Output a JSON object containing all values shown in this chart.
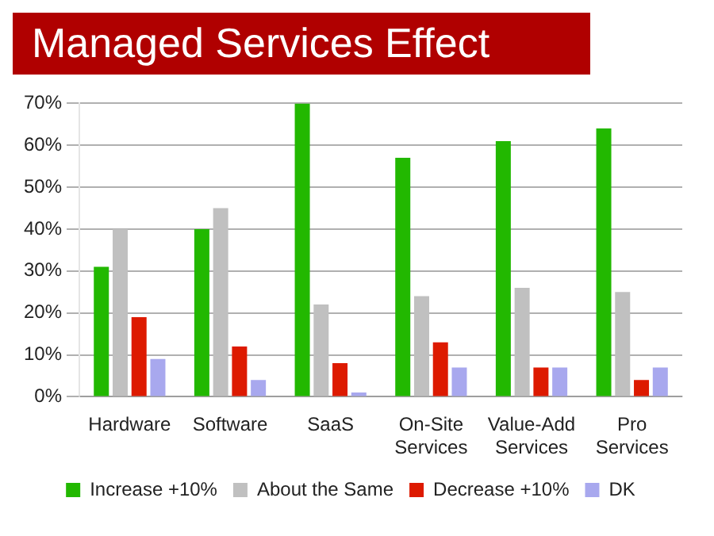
{
  "chart_data": {
    "type": "bar",
    "title": "Managed Services Effect",
    "categories": [
      "Hardware",
      "Software",
      "SaaS",
      "On-Site Services",
      "Value-Add Services",
      "Pro Services"
    ],
    "series": [
      {
        "name": "Increase +10%",
        "color": "#22b800",
        "values": [
          31,
          40,
          70,
          57,
          61,
          64
        ]
      },
      {
        "name": "About the Same",
        "color": "#c0c0c0",
        "values": [
          40,
          45,
          22,
          24,
          26,
          25
        ]
      },
      {
        "name": "Decrease +10%",
        "color": "#dd1a00",
        "values": [
          19,
          12,
          8,
          13,
          7,
          4
        ]
      },
      {
        "name": "DK",
        "color": "#a8a8ee",
        "values": [
          9,
          4,
          1,
          7,
          7,
          7
        ]
      }
    ],
    "ylim": [
      0,
      70
    ],
    "yticks": [
      {
        "value": 0,
        "label": "0%"
      },
      {
        "value": 10,
        "label": "10%"
      },
      {
        "value": 20,
        "label": "20%"
      },
      {
        "value": 30,
        "label": "30%"
      },
      {
        "value": 40,
        "label": "40%"
      },
      {
        "value": 50,
        "label": "50%"
      },
      {
        "value": 60,
        "label": "60%"
      },
      {
        "value": 70,
        "label": "70%"
      }
    ],
    "grid": "y",
    "legend": "bottom"
  }
}
